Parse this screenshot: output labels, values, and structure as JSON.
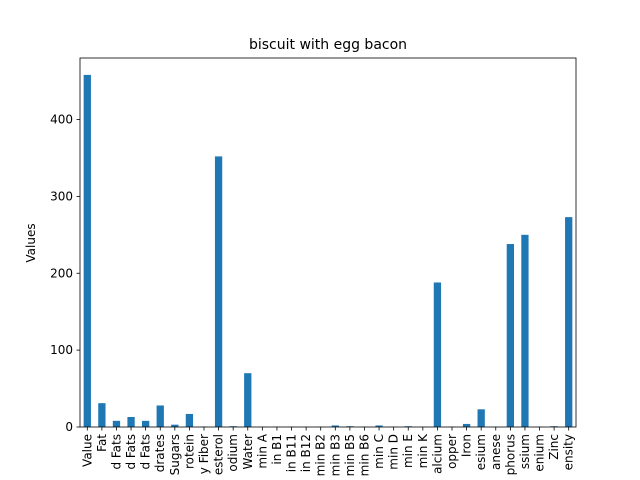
{
  "chart_data": {
    "type": "bar",
    "title": "biscuit with egg bacon",
    "xlabel": "",
    "ylabel": "Values",
    "ylim": [
      0,
      480
    ],
    "yticks": [
      0,
      100,
      200,
      300,
      400
    ],
    "grid": false,
    "legend": "none",
    "bar_color": "#1f77b4",
    "categories": [
      "Value",
      "Fat",
      "d Fats",
      "d Fats",
      "d Fats",
      "drates",
      "Sugars",
      "rotein",
      "y Fiber",
      "esterol",
      "odium",
      "Water",
      "min A",
      "in B1",
      "in B11",
      "in B12",
      "min B2",
      "min B3",
      "min B5",
      "min B6",
      "min C",
      "min D",
      "min E",
      "min K",
      "alcium",
      "opper",
      "Iron",
      "esium",
      "anese",
      "phorus",
      "ssium",
      "enium",
      "Zinc",
      "ensity"
    ],
    "values": [
      458,
      31,
      8,
      13,
      8,
      28,
      3,
      17,
      0.5,
      352,
      1,
      70,
      0.3,
      0.3,
      0.3,
      0.3,
      0.3,
      2,
      1,
      0.3,
      2,
      0.3,
      1,
      0.3,
      188,
      0.3,
      4,
      23,
      0.3,
      238,
      250,
      0.3,
      1,
      273
    ]
  }
}
